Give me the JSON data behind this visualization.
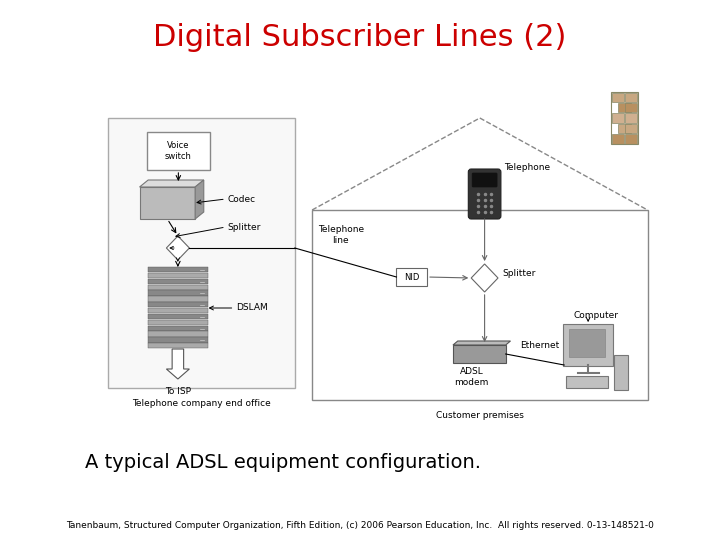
{
  "title": "Digital Subscriber Lines (2)",
  "title_color": "#cc0000",
  "title_fontsize": 22,
  "caption": "A typical ADSL equipment configuration.",
  "caption_fontsize": 14,
  "footer": "Tanenbaum, Structured Computer Organization, Fifth Edition, (c) 2006 Pearson Education, Inc.  All rights reserved. 0-13-148521-0",
  "footer_fontsize": 6.5,
  "bg_color": "#ffffff"
}
